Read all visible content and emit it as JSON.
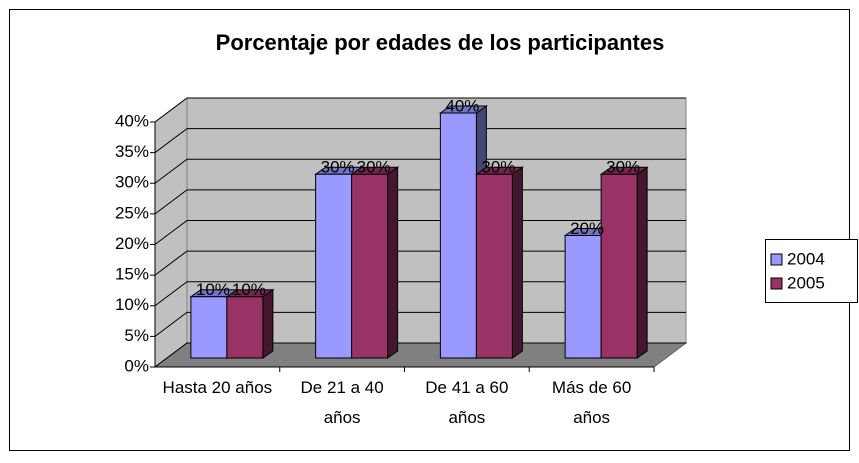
{
  "chart_data": {
    "type": "bar3d",
    "title": "Porcentaje por edades de los participantes",
    "categories": [
      "Hasta 20 años",
      "De 21 a 40 años",
      "De 41 a 60 años",
      "Más de 60 años"
    ],
    "series": [
      {
        "name": "2004",
        "color": "#9999ff",
        "values": [
          10,
          30,
          40,
          20
        ],
        "value_labels": [
          "10%",
          "30%",
          "40%",
          "20%"
        ]
      },
      {
        "name": "2005",
        "color": "#993366",
        "values": [
          10,
          30,
          30,
          30
        ],
        "value_labels": [
          "10%",
          "30%",
          "30%",
          "30%"
        ]
      }
    ],
    "ylim": [
      0,
      40
    ],
    "yticks": [
      {
        "value": 0,
        "label": "0%"
      },
      {
        "value": 5,
        "label": "5%"
      },
      {
        "value": 10,
        "label": "10%"
      },
      {
        "value": 15,
        "label": "15%"
      },
      {
        "value": 20,
        "label": "20%"
      },
      {
        "value": 25,
        "label": "25%"
      },
      {
        "value": 30,
        "label": "30%"
      },
      {
        "value": 35,
        "label": "35%"
      },
      {
        "value": 40,
        "label": "40%"
      }
    ],
    "grid": true,
    "legend": "right"
  }
}
